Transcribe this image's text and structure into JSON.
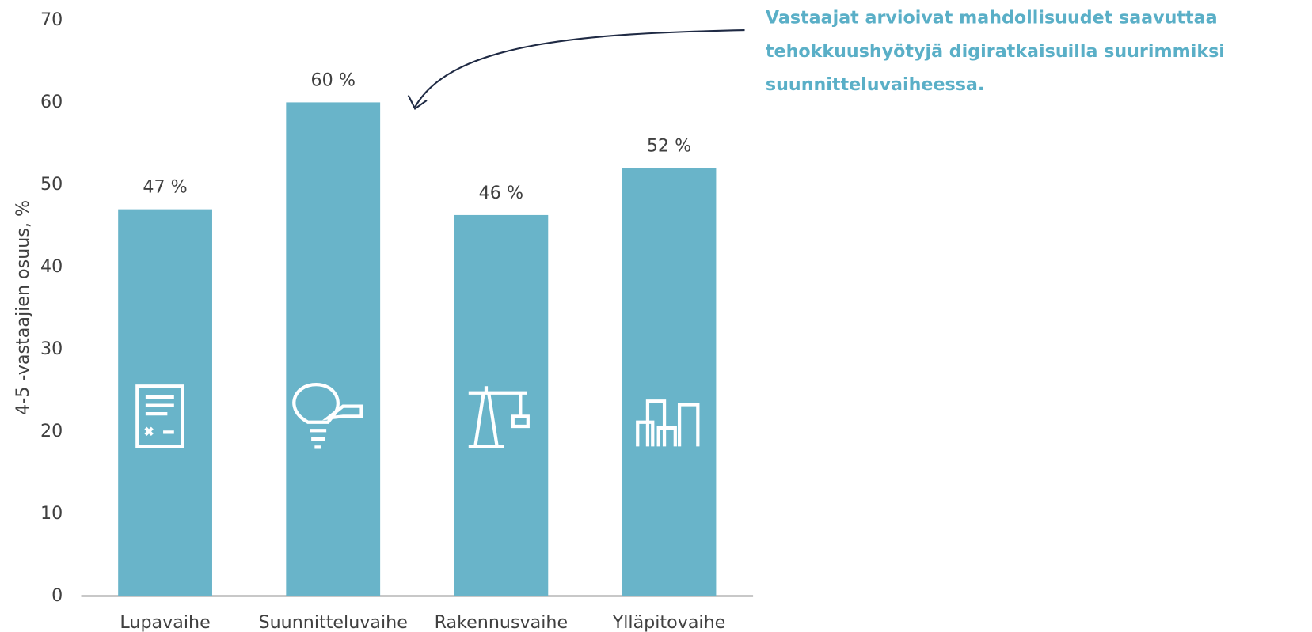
{
  "chart_data": {
    "type": "bar",
    "y_axis_label": "4-5 -vastaajien osuus, %",
    "categories": [
      "Lupavaihe",
      "Suunnitteluvaihe",
      "Rakennusvaihe",
      "Ylläpitovaihe"
    ],
    "values": [
      47,
      60,
      46.3,
      52
    ],
    "value_labels": [
      "47 %",
      "60 %",
      "46 %",
      "52 %"
    ],
    "color": "#69b4c9",
    "ylim": [
      0,
      70
    ],
    "yticks": [
      0,
      10,
      20,
      30,
      40,
      50,
      60,
      70
    ],
    "grid": false,
    "annotation": [
      "Vastaajat arvioivat mahdollisuudet saavuttaa",
      "tehokkuushyötyjä digiratkaisuilla suurimmiksi",
      "suunnitteluvaiheessa."
    ]
  }
}
